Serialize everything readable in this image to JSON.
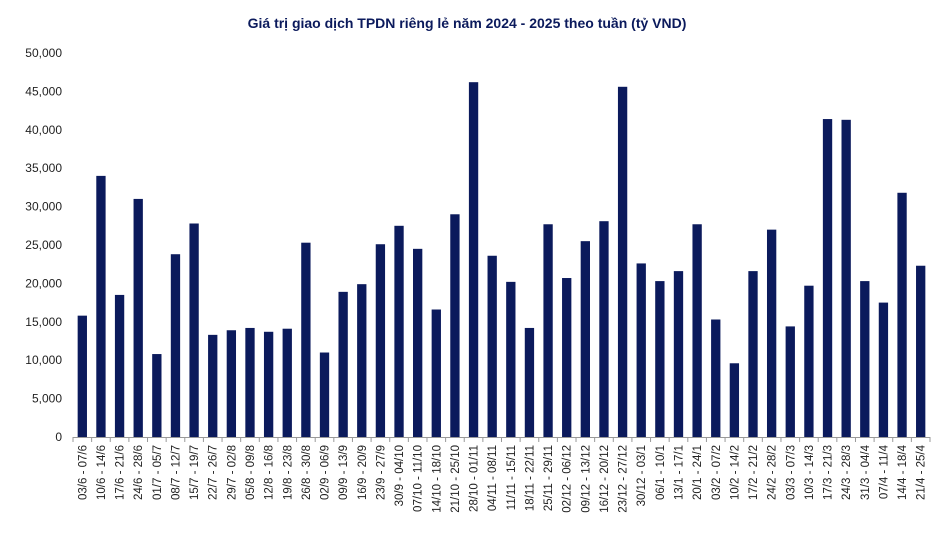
{
  "chart_data": {
    "type": "bar",
    "title": "Giá trị giao dịch TPDN riêng lẻ năm 2024 - 2025 theo tuần (tỷ VND)",
    "xlabel": "",
    "ylabel": "",
    "ylim": [
      0,
      50000
    ],
    "yticks": [
      0,
      5000,
      10000,
      15000,
      20000,
      25000,
      30000,
      35000,
      40000,
      45000,
      50000
    ],
    "ytick_labels": [
      "0",
      "5,000",
      "10,000",
      "15,000",
      "20,000",
      "25,000",
      "30,000",
      "35,000",
      "40,000",
      "45,000",
      "50,000"
    ],
    "grid": false,
    "bar_color": "#0b1a5c",
    "categories": [
      "03/6 - 07/6",
      "10/6 - 14/6",
      "17/6 - 21/6",
      "24/6 - 28/6",
      "01/7 - 05/7",
      "08/7 - 12/7",
      "15/7 - 19/7",
      "22/7 - 26/7",
      "29/7 - 02/8",
      "05/8 - 09/8",
      "12/8 - 16/8",
      "19/8 - 23/8",
      "26/8 - 30/8",
      "02/9 - 06/9",
      "09/9 - 13/9",
      "16/9 - 20/9",
      "23/9 - 27/9",
      "30/9 - 04/10",
      "07/10 - 11/10",
      "14/10 - 18/10",
      "21/10 - 25/10",
      "28/10 - 01/11",
      "04/11 - 08/11",
      "11/11 - 15/11",
      "18/11 - 22/11",
      "25/11 - 29/11",
      "02/12 - 06/12",
      "09/12 - 13/12",
      "16/12 - 20/12",
      "23/12 - 27/12",
      "30/12 - 03/1",
      "06/1 - 10/1",
      "13/1 - 17/1",
      "20/1 - 24/1",
      "03/2 - 07/2",
      "10/2 - 14/2",
      "17/2 - 21/2",
      "24/2 - 28/2",
      "03/3 - 07/3",
      "10/3 - 14/3",
      "17/3 - 21/3",
      "24/3 - 28/3",
      "31/3 - 04/4",
      "07/4 - 11/4",
      "14/4 - 18/4",
      "21/4 - 25/4"
    ],
    "values": [
      15800,
      34000,
      18500,
      31000,
      10800,
      23800,
      27800,
      13300,
      13900,
      14200,
      13700,
      14100,
      25300,
      11000,
      18900,
      19900,
      25100,
      27500,
      24500,
      16600,
      29000,
      46200,
      23600,
      20200,
      14200,
      27700,
      20700,
      25500,
      28100,
      45600,
      22600,
      20300,
      21600,
      27700,
      15300,
      9600,
      21600,
      27000,
      14400,
      19700,
      41400,
      41300,
      20300,
      17500,
      31800,
      22300
    ]
  }
}
